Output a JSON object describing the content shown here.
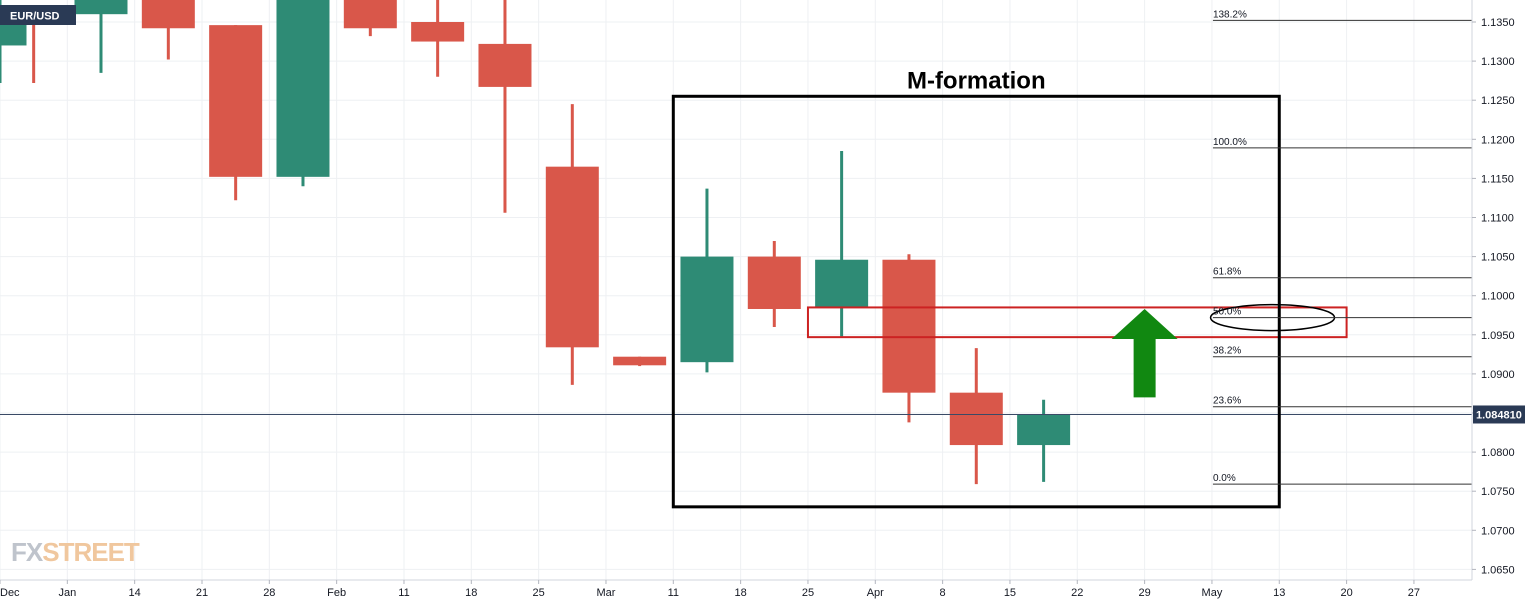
{
  "symbol": "EUR/USD",
  "watermark": {
    "fx": "FX",
    "street": "STREET"
  },
  "price_tag": "1.084810",
  "colors": {
    "up": "#2e8b75",
    "down": "#d9574a",
    "grid": "#eef0f3",
    "axis_text": "#131722",
    "box": "#000000",
    "zone": "#cc2222",
    "arrow": "#118811",
    "tag_bg": "#2a3a55",
    "vline": "#7a0f0f"
  },
  "chart_data": {
    "type": "candlestick",
    "title": "M-formation",
    "xlabel": "",
    "ylabel": "",
    "ylim": [
      1.064,
      1.142
    ],
    "y_ticks": [
      {
        "value": 1.135,
        "label": "1.1350"
      },
      {
        "value": 1.13,
        "label": "1.1300"
      },
      {
        "value": 1.125,
        "label": "1.1250"
      },
      {
        "value": 1.12,
        "label": "1.1200"
      },
      {
        "value": 1.115,
        "label": "1.1150"
      },
      {
        "value": 1.11,
        "label": "1.1100"
      },
      {
        "value": 1.105,
        "label": "1.1050"
      },
      {
        "value": 1.1,
        "label": "1.1000"
      },
      {
        "value": 1.095,
        "label": "1.0950"
      },
      {
        "value": 1.09,
        "label": "1.0900"
      },
      {
        "value": 1.085,
        "label": "1.0850"
      },
      {
        "value": 1.08,
        "label": "1.0800"
      },
      {
        "value": 1.075,
        "label": "1.0750"
      },
      {
        "value": 1.07,
        "label": "1.0700"
      },
      {
        "value": 1.065,
        "label": "1.0650"
      }
    ],
    "x_ticks": [
      {
        "i": 0,
        "label": "Dec"
      },
      {
        "i": 1,
        "label": "Jan"
      },
      {
        "i": 2,
        "label": "14"
      },
      {
        "i": 3,
        "label": "21"
      },
      {
        "i": 4,
        "label": "28"
      },
      {
        "i": 5,
        "label": "Feb"
      },
      {
        "i": 6,
        "label": "11"
      },
      {
        "i": 7,
        "label": "18"
      },
      {
        "i": 8,
        "label": "25"
      },
      {
        "i": 9,
        "label": "Mar"
      },
      {
        "i": 10,
        "label": "11"
      },
      {
        "i": 11,
        "label": "18"
      },
      {
        "i": 12,
        "label": "25"
      },
      {
        "i": 13,
        "label": "Apr"
      },
      {
        "i": 14,
        "label": "8"
      },
      {
        "i": 15,
        "label": "15"
      },
      {
        "i": 16,
        "label": "22"
      },
      {
        "i": 17,
        "label": "29"
      },
      {
        "i": 18,
        "label": "May"
      },
      {
        "i": 19,
        "label": "13"
      },
      {
        "i": 20,
        "label": "20"
      },
      {
        "i": 21,
        "label": "27"
      }
    ],
    "candles": [
      {
        "i": 0.0,
        "open": 1.132,
        "high": 1.139,
        "low": 1.1272,
        "close": 1.136
      },
      {
        "i": 0.5,
        "open": 1.1369,
        "high": 1.1369,
        "low": 1.1272,
        "close": 1.1359
      },
      {
        "i": 1.5,
        "open": 1.136,
        "high": 1.142,
        "low": 1.1285,
        "close": 1.142
      },
      {
        "i": 2.5,
        "open": 1.142,
        "high": 1.142,
        "low": 1.1302,
        "close": 1.1342
      },
      {
        "i": 3.5,
        "open": 1.1346,
        "high": 1.1346,
        "low": 1.1122,
        "close": 1.1152
      },
      {
        "i": 4.5,
        "open": 1.1152,
        "high": 1.142,
        "low": 1.114,
        "close": 1.142
      },
      {
        "i": 5.5,
        "open": 1.142,
        "high": 1.142,
        "low": 1.1332,
        "close": 1.1342
      },
      {
        "i": 6.5,
        "open": 1.135,
        "high": 1.142,
        "low": 1.128,
        "close": 1.1325
      },
      {
        "i": 7.5,
        "open": 1.1322,
        "high": 1.142,
        "low": 1.1106,
        "close": 1.1267
      },
      {
        "i": 8.5,
        "open": 1.1165,
        "high": 1.1245,
        "low": 1.0886,
        "close": 1.0934
      },
      {
        "i": 9.5,
        "open": 1.0922,
        "high": 1.0922,
        "low": 1.091,
        "close": 1.0911
      },
      {
        "i": 10.5,
        "open": 1.0915,
        "high": 1.1137,
        "low": 1.0902,
        "close": 1.105
      },
      {
        "i": 11.5,
        "open": 1.105,
        "high": 1.107,
        "low": 1.096,
        "close": 1.0983
      },
      {
        "i": 12.5,
        "open": 1.0985,
        "high": 1.1185,
        "low": 1.0948,
        "close": 1.1046
      },
      {
        "i": 13.5,
        "open": 1.1046,
        "high": 1.1053,
        "low": 1.0838,
        "close": 1.0876
      },
      {
        "i": 14.5,
        "open": 1.0876,
        "high": 1.0933,
        "low": 1.0759,
        "close": 1.0809
      },
      {
        "i": 15.5,
        "open": 1.0809,
        "high": 1.0867,
        "low": 1.0762,
        "close": 1.0848
      }
    ],
    "last_price": 1.08481,
    "fib_levels": [
      {
        "label": "138.2%",
        "value": 1.1352
      },
      {
        "label": "100.0%",
        "value": 1.1189
      },
      {
        "label": "61.8%",
        "value": 1.1023
      },
      {
        "label": "50.0%",
        "value": 1.0972
      },
      {
        "label": "38.2%",
        "value": 1.0922
      },
      {
        "label": "23.6%",
        "value": 1.0858
      },
      {
        "label": "0.0%",
        "value": 1.0759
      }
    ],
    "annotations": [
      {
        "type": "box",
        "label": "M-formation",
        "x_from": 10.0,
        "x_to": 19.0,
        "y_from": 1.073,
        "y_to": 1.1255
      },
      {
        "type": "zone",
        "x_from": 12.0,
        "x_to": 20.0,
        "y_from": 1.0947,
        "y_to": 1.0985
      },
      {
        "type": "ellipse",
        "x_center": 18.9,
        "y_center": 1.0972
      },
      {
        "type": "arrow-up",
        "x_center": 17.0,
        "y_from": 1.087,
        "y_to": 1.0983
      },
      {
        "type": "vline",
        "x": 10.0,
        "y_from": 1.0805,
        "y_to": 1.1122
      }
    ]
  }
}
